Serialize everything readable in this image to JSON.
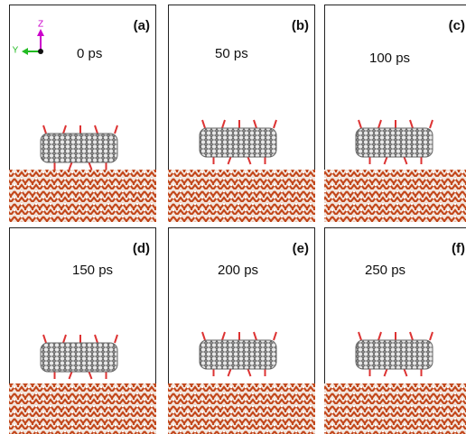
{
  "panels": [
    {
      "label": "(a)",
      "time": "0 ps"
    },
    {
      "label": "(b)",
      "time": "50 ps"
    },
    {
      "label": "(c)",
      "time": "100 ps"
    },
    {
      "label": "(d)",
      "time": "150 ps"
    },
    {
      "label": "(e)",
      "time": "200 ps"
    },
    {
      "label": "(f)",
      "time": "250 ps"
    }
  ],
  "axes": {
    "z": "Z",
    "y": "Y"
  }
}
